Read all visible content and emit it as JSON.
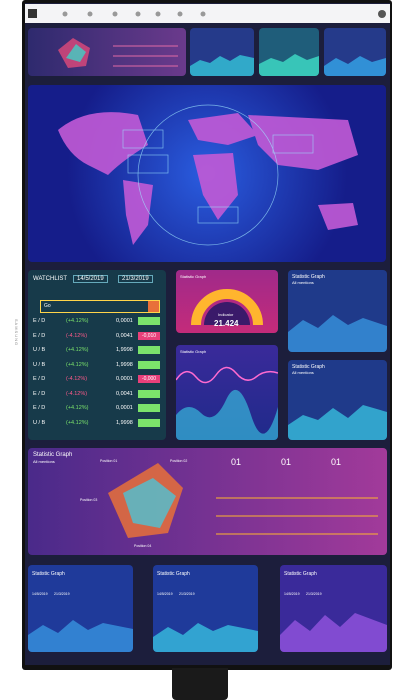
{
  "bezel": {
    "brand": "SAMSUNG"
  },
  "watchlist": {
    "title": "WATCHLIST",
    "dates": [
      "14/5/2019",
      "21/3/2019"
    ],
    "search": "Go",
    "rows": [
      {
        "pair": "E / D",
        "change": "(+4.12%)",
        "value": "0,0001",
        "badge_color": "#7be36b"
      },
      {
        "pair": "E / D",
        "change": "(-4.12%)",
        "value": "0,0041",
        "badge": "-0,010",
        "badge_color": "#e8407a"
      },
      {
        "pair": "U / B",
        "change": "(+4.12%)",
        "value": "1,9998",
        "badge_color": "#7be36b"
      },
      {
        "pair": "U / B",
        "change": "(+4.12%)",
        "value": "1,9998",
        "badge_color": "#7be36b"
      },
      {
        "pair": "E / D",
        "change": "(-4.12%)",
        "value": "0,0001",
        "badge": "-0,000",
        "badge_color": "#e8407a"
      },
      {
        "pair": "E / D",
        "change": "(-4.12%)",
        "value": "0,0041",
        "badge_color": "#7be36b"
      },
      {
        "pair": "E / D",
        "change": "(+4.12%)",
        "value": "0,0001",
        "badge_color": "#7be36b"
      },
      {
        "pair": "U / B",
        "change": "(+4.12%)",
        "value": "1,9998",
        "badge_color": "#7be36b"
      }
    ]
  },
  "gauge": {
    "title": "Statistic Graph",
    "label": "Indicator",
    "value": "21.424"
  },
  "panels": [
    {
      "title": "Statistic Graph",
      "subtitle": "All mentions"
    },
    {
      "title": "Statistic Graph",
      "subtitle": "All mentions"
    },
    {
      "title": "Statistic Graph",
      "subtitle": "All mentions"
    },
    {
      "title": "Statistic Graph",
      "dates": [
        "14/5/2019",
        "21/3/2019"
      ]
    },
    {
      "title": "Statistic Graph",
      "dates": [
        "14/5/2019",
        "21/3/2019"
      ]
    },
    {
      "title": "Statistic Graph",
      "dates": [
        "14/5/2019",
        "21/3/2019"
      ]
    }
  ],
  "radar_panel": {
    "title": "Statistic Graph",
    "subtitle": "All mentions",
    "positions": [
      "Position 01",
      "Position 02",
      "Position 03",
      "Position 04"
    ],
    "steps": [
      "01",
      "01",
      "01"
    ]
  }
}
